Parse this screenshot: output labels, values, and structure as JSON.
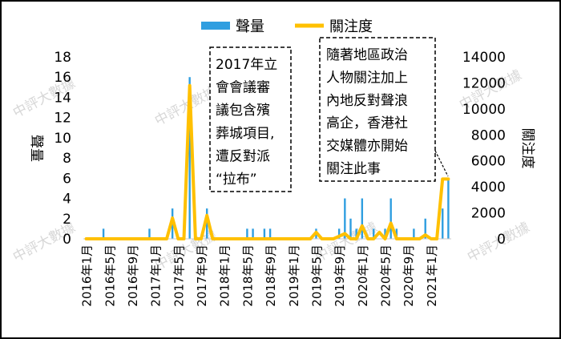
{
  "chart_data": {
    "type": "bar+line",
    "title": "",
    "x": [
      "2016年1月",
      "2016年2月",
      "2016年3月",
      "2016年4月",
      "2016年5月",
      "2016年6月",
      "2016年7月",
      "2016年8月",
      "2016年9月",
      "2016年10月",
      "2016年11月",
      "2016年12月",
      "2017年1月",
      "2017年2月",
      "2017年3月",
      "2017年4月",
      "2017年5月",
      "2017年6月",
      "2017年7月",
      "2017年8月",
      "2017年9月",
      "2017年10月",
      "2017年11月",
      "2017年12月",
      "2018年1月",
      "2018年2月",
      "2018年3月",
      "2018年4月",
      "2018年5月",
      "2018年6月",
      "2018年7月",
      "2018年8月",
      "2018年9月",
      "2018年10月",
      "2018年11月",
      "2018年12月",
      "2019年1月",
      "2019年2月",
      "2019年3月",
      "2019年4月",
      "2019年5月",
      "2019年6月",
      "2019年7月",
      "2019年8月",
      "2019年9月",
      "2019年10月",
      "2019年11月",
      "2019年12月",
      "2020年1月",
      "2020年2月",
      "2020年3月",
      "2020年4月",
      "2020年5月",
      "2020年6月",
      "2020年7月",
      "2020年8月",
      "2020年9月",
      "2020年10月",
      "2020年11月",
      "2020年12月",
      "2021年1月",
      "2021年2月",
      "2021年3月",
      "2021年4月"
    ],
    "x_tick_labels": [
      "2016年1月",
      "2016年5月",
      "2016年9月",
      "2017年1月",
      "2017年5月",
      "2017年9月",
      "2018年1月",
      "2018年5月",
      "2018年9月",
      "2019年1月",
      "2019年5月",
      "2019年9月",
      "2020年1月",
      "2020年5月",
      "2020年9月",
      "2021年1月"
    ],
    "series": [
      {
        "name": "聲量",
        "type": "bar",
        "axis": "left",
        "color": "#2f9ee0",
        "values": [
          0,
          0,
          0,
          1,
          0,
          0,
          0,
          0,
          0,
          0,
          0,
          1,
          0,
          0,
          0,
          3,
          0,
          1,
          16,
          1,
          0,
          3,
          0,
          0,
          0,
          0,
          0,
          0,
          1,
          1,
          0,
          1,
          1,
          0,
          0,
          0,
          0,
          0,
          0,
          0,
          1,
          0,
          0,
          0,
          1,
          4,
          2,
          1,
          4,
          0,
          1,
          0,
          1,
          4,
          1,
          0,
          0,
          1,
          0,
          2,
          0,
          0,
          3,
          6
        ]
      },
      {
        "name": "關注度",
        "type": "line",
        "axis": "right",
        "color": "#ffc000",
        "values": [
          0,
          0,
          0,
          0,
          0,
          0,
          0,
          0,
          0,
          0,
          0,
          0,
          0,
          0,
          0,
          1600,
          0,
          0,
          11800,
          0,
          0,
          1800,
          0,
          0,
          0,
          0,
          0,
          0,
          0,
          0,
          0,
          0,
          0,
          0,
          0,
          0,
          0,
          0,
          0,
          0,
          500,
          0,
          0,
          0,
          200,
          400,
          0,
          0,
          1000,
          0,
          0,
          500,
          0,
          1200,
          0,
          0,
          0,
          0,
          0,
          300,
          0,
          0,
          4600,
          4600
        ]
      }
    ],
    "y_left": {
      "label": "聲量",
      "ylim": [
        0,
        18
      ],
      "ticks": [
        "0",
        "2",
        "4",
        "6",
        "8",
        "10",
        "12",
        "14",
        "16",
        "18"
      ]
    },
    "y_right": {
      "label": "關注度",
      "ylim": [
        0,
        14000
      ],
      "ticks": [
        "0",
        "2000",
        "4000",
        "6000",
        "8000",
        "10000",
        "12000",
        "14000"
      ]
    },
    "legend": {
      "position": "top-center",
      "entries": [
        "聲量",
        "關注度"
      ]
    },
    "grid": false,
    "annotations": [
      {
        "id": "annot-2017",
        "lines": [
          "2017年立",
          "會會議審",
          "議包含殯",
          "葬城項目,",
          "遭反對派",
          "“拉布”"
        ]
      },
      {
        "id": "annot-2021",
        "lines": [
          "隨著地區政治",
          "人物關注加上",
          "內地反對聲浪",
          "高企，香港社",
          "交媒體亦開始",
          "關注此事"
        ]
      }
    ]
  },
  "watermark": "中評大數據"
}
